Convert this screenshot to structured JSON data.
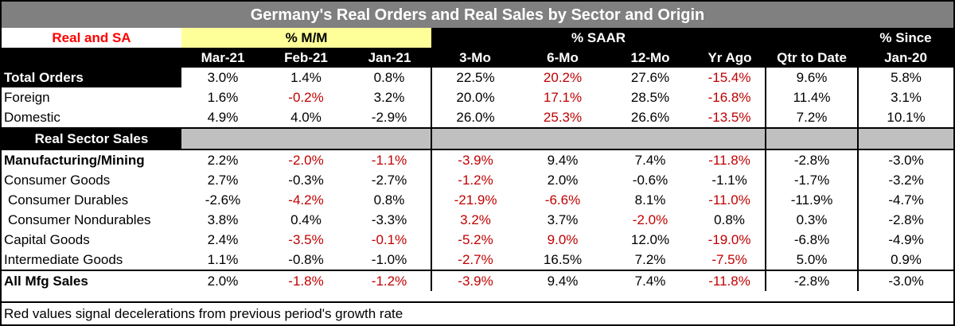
{
  "title": "Germany's Real Orders and Real Sales by Sector and Origin",
  "header": {
    "real_sa": "Real and SA",
    "mm": "% M/M",
    "saar": "% SAAR",
    "since_top": "% Since",
    "cols": [
      "Mar-21",
      "Feb-21",
      "Jan-21",
      "3-Mo",
      "6-Mo",
      "12-Mo",
      "Yr Ago",
      "Qtr to Date",
      "Jan-20"
    ]
  },
  "rows": {
    "total_orders": {
      "label": "Total Orders",
      "v": [
        "3.0%",
        "1.4%",
        "0.8%",
        "22.5%",
        "20.2%",
        "27.6%",
        "-15.4%",
        "9.6%",
        "5.8%"
      ]
    },
    "foreign": {
      "label": "Foreign",
      "v": [
        "1.6%",
        "-0.2%",
        "3.2%",
        "20.0%",
        "17.1%",
        "28.5%",
        "-16.8%",
        "11.4%",
        "3.1%"
      ]
    },
    "domestic": {
      "label": "Domestic",
      "v": [
        "4.9%",
        "4.0%",
        "-2.9%",
        "26.0%",
        "25.3%",
        "26.6%",
        "-13.5%",
        "7.2%",
        "10.1%"
      ]
    },
    "real_sector_sales": {
      "label": "Real Sector Sales"
    },
    "manufacturing": {
      "label": "Manufacturing/Mining",
      "v": [
        "2.2%",
        "-2.0%",
        "-1.1%",
        "-3.9%",
        "9.4%",
        "7.4%",
        "-11.8%",
        "-2.8%",
        "-3.0%"
      ]
    },
    "consumer_goods": {
      "label": "Consumer Goods",
      "v": [
        "2.7%",
        "-0.3%",
        "-2.7%",
        "-1.2%",
        "2.0%",
        "-0.6%",
        "-1.1%",
        "-1.7%",
        "-3.2%"
      ]
    },
    "consumer_durables": {
      "label": "Consumer Durables",
      "v": [
        "-2.6%",
        "-4.2%",
        "0.8%",
        "-21.9%",
        "-6.6%",
        "8.1%",
        "-11.0%",
        "-11.9%",
        "-4.7%"
      ]
    },
    "consumer_nondurables": {
      "label": "Consumer Nondurables",
      "v": [
        "3.8%",
        "0.4%",
        "-3.3%",
        "3.2%",
        "3.7%",
        "-2.0%",
        "0.8%",
        "0.3%",
        "-2.8%"
      ]
    },
    "capital_goods": {
      "label": "Capital Goods",
      "v": [
        "2.4%",
        "-3.5%",
        "-0.1%",
        "-5.2%",
        "9.0%",
        "12.0%",
        "-19.0%",
        "-6.8%",
        "-4.9%"
      ]
    },
    "intermediate_goods": {
      "label": "Intermediate Goods",
      "v": [
        "1.1%",
        "-0.8%",
        "-1.0%",
        "-2.7%",
        "16.5%",
        "7.2%",
        "-7.5%",
        "5.0%",
        "0.9%"
      ]
    },
    "all_mfg_sales": {
      "label": "All Mfg Sales",
      "v": [
        "2.0%",
        "-1.8%",
        "-1.2%",
        "-3.9%",
        "9.4%",
        "7.4%",
        "-11.8%",
        "-2.8%",
        "-3.0%"
      ]
    }
  },
  "footnote": "Red values signal decelerations from previous period's growth rate",
  "colors": {
    "header_bg": "#000000",
    "title_bg": "#808080",
    "mm_bg": "#ffff99",
    "decel_red": "#c00000",
    "section_gray": "#c0c0c0"
  }
}
